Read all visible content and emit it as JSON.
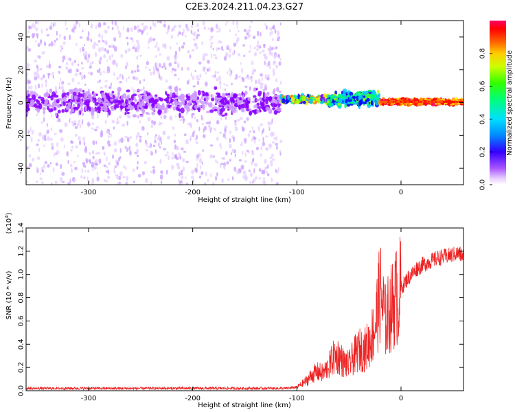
{
  "title": "C2E3.2024.211.04.23.G27",
  "colors": {
    "snr_line": "#ee2222",
    "spectro_scatter": "#a455ee",
    "spectro_core": "#5500ee",
    "spectro_colormap": [
      "#f0e0ff",
      "#cc99ff",
      "#8800ff",
      "#0000ff",
      "#00c8ff",
      "#00ff66",
      "#aaff00",
      "#ffee00",
      "#ff8800",
      "#ff0000",
      "#ff0066"
    ]
  },
  "chart_data": [
    {
      "type": "heatmap",
      "title": "C2E3.2024.211.04.23.G27",
      "xlabel": "Height of straight line (km)",
      "ylabel": "Frequency (Hz)",
      "xlim": [
        -360,
        60
      ],
      "ylim": [
        -50,
        50
      ],
      "xticks": [
        "-300",
        "-200",
        "-100",
        "0"
      ],
      "xtick_values": [
        -300,
        -200,
        -100,
        0
      ],
      "yticks": [
        "40",
        "20",
        "0",
        "-20",
        "-40"
      ],
      "ytick_values": [
        40,
        20,
        0,
        -20,
        -40
      ],
      "colorbar": {
        "label": "Normalized spectral amplitude",
        "range": [
          0,
          1
        ],
        "ticks": [
          "0.0",
          "0.2",
          "0.4",
          "0.6",
          "0.8"
        ],
        "tick_values": [
          0,
          0.2,
          0.4,
          0.6,
          0.8
        ]
      },
      "regions": [
        {
          "x_range": [
            -360,
            -115
          ],
          "freq_center": 0,
          "core_halfwidth": 10,
          "scatter_range": [
            -50,
            50
          ],
          "amplitude": [
            0.05,
            0.25
          ]
        },
        {
          "x_range": [
            -115,
            -70
          ],
          "freq_center": 2,
          "core_halfwidth": 3,
          "amplitude": [
            0.2,
            0.85
          ]
        },
        {
          "x_range": [
            -70,
            -20
          ],
          "freq_center": 2,
          "core_halfwidth": 6,
          "amplitude": [
            0.3,
            0.6
          ]
        },
        {
          "x_range": [
            -20,
            60
          ],
          "freq_center": 0.5,
          "core_halfwidth": 2,
          "amplitude": [
            0.7,
            1.0
          ]
        }
      ]
    },
    {
      "type": "line",
      "xlabel": "Height of straight line (km)",
      "ylabel": "SNR (10 * v/v)",
      "y_multiplier": "(x10",
      "y_multiplier_exp": "4",
      "y_multiplier_close": ")",
      "xlim": [
        -360,
        60
      ],
      "ylim": [
        0,
        1.4
      ],
      "xticks": [
        "-300",
        "-200",
        "-100",
        "0"
      ],
      "xtick_values": [
        -300,
        -200,
        -100,
        0
      ],
      "yticks": [
        "0.0",
        "0.2",
        "0.4",
        "0.6",
        "0.8",
        "1.0",
        "1.2",
        "1.4"
      ],
      "ytick_values": [
        0,
        0.2,
        0.4,
        0.6,
        0.8,
        1.0,
        1.2,
        1.4
      ],
      "series": [
        {
          "x": [
            -360,
            -330,
            -300,
            -270,
            -240,
            -210,
            -180,
            -150,
            -120,
            -110,
            -100,
            -95,
            -90,
            -85,
            -80,
            -75,
            -70,
            -65,
            -60,
            -55,
            -50,
            -45,
            -40,
            -35,
            -30,
            -25,
            -20,
            -15,
            -10,
            -5,
            0,
            5,
            10,
            15,
            20,
            25,
            30,
            35,
            40,
            45,
            50,
            55,
            60
          ],
          "values": [
            0.02,
            0.02,
            0.02,
            0.02,
            0.02,
            0.02,
            0.02,
            0.02,
            0.02,
            0.02,
            0.03,
            0.06,
            0.09,
            0.14,
            0.16,
            0.15,
            0.2,
            0.28,
            0.3,
            0.24,
            0.22,
            0.3,
            0.35,
            0.35,
            0.42,
            0.55,
            0.85,
            0.6,
            0.7,
            0.8,
            0.88,
            0.95,
            1.0,
            1.05,
            1.08,
            1.1,
            1.12,
            1.14,
            1.15,
            1.16,
            1.17,
            1.18,
            1.16
          ]
        }
      ]
    }
  ]
}
